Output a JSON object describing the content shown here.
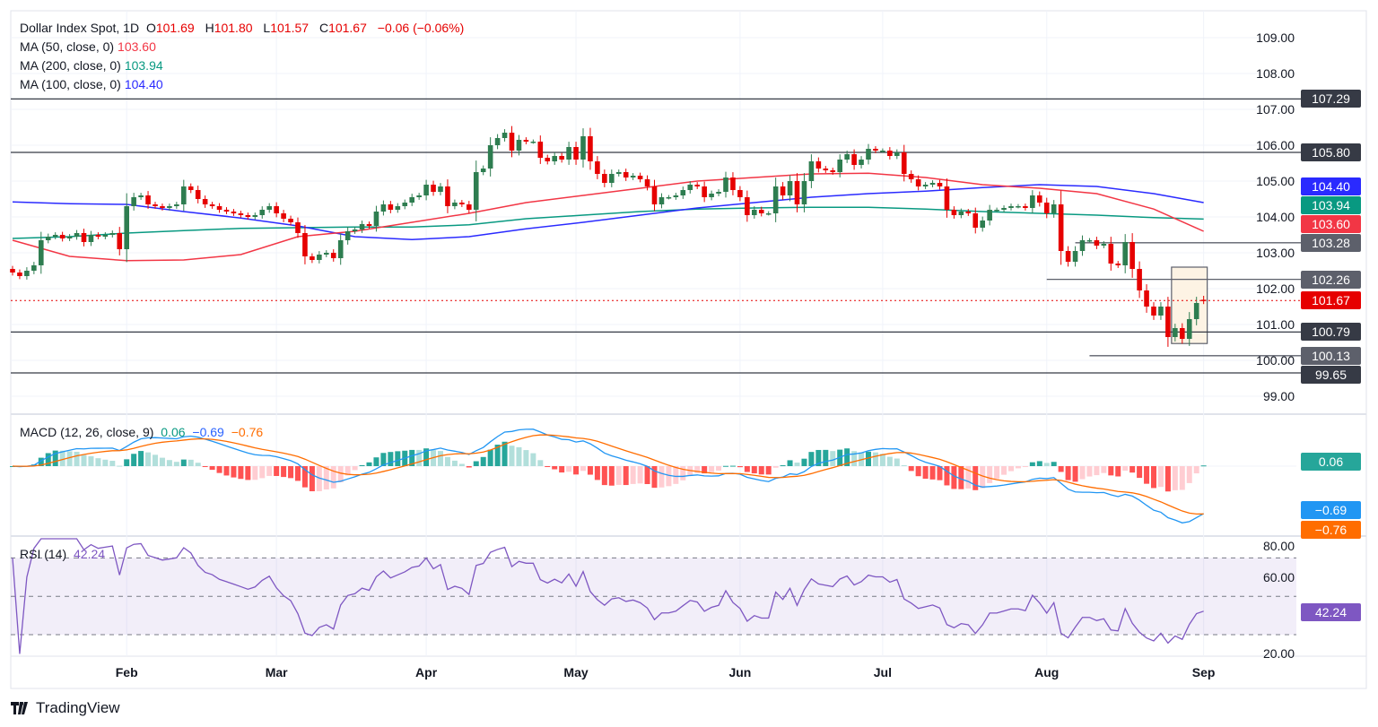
{
  "header": {
    "symbol": "Dollar Index Spot, 1D",
    "o_label": "O",
    "o": "101.69",
    "h_label": "H",
    "h": "101.80",
    "l_label": "L",
    "l": "101.57",
    "c_label": "C",
    "c": "101.67",
    "change": "−0.06 (−0.06%)"
  },
  "legend": {
    "ma50": {
      "label": "MA (50, close, 0)",
      "value": "103.60"
    },
    "ma200": {
      "label": "MA (200, close, 0)",
      "value": "103.94"
    },
    "ma100": {
      "label": "MA (100, close, 0)",
      "value": "104.40"
    }
  },
  "macd": {
    "label": "MACD (12, 26, close, 9)",
    "hist": "0.06",
    "macd": "−0.69",
    "signal": "−0.76"
  },
  "rsi": {
    "label": "RSI (14)",
    "value": "42.24"
  },
  "branding": {
    "name": "TradingView"
  },
  "colors": {
    "up": "#2e7d50",
    "down": "#e60000",
    "ma50": "#f23645",
    "ma100": "#2a2aff",
    "ma200": "#089981",
    "macd": "#2196f3",
    "signal": "#ff6d00",
    "rsi": "#7e57c2"
  },
  "chart_data": {
    "type": "candlestick",
    "price_axis": {
      "ticks": [
        "109.00",
        "108.00",
        "107.00",
        "106.00",
        "105.00",
        "104.00",
        "103.00",
        "102.00",
        "101.00",
        "100.00",
        "99.00"
      ],
      "range": [
        98.5,
        109.5
      ]
    },
    "rsi_axis": {
      "ticks": [
        "80.00",
        "60.00",
        "20.00"
      ],
      "bands": [
        70,
        50,
        30
      ]
    },
    "x_ticks": [
      {
        "label": "Feb",
        "bar": 16
      },
      {
        "label": "Mar",
        "bar": 37
      },
      {
        "label": "Apr",
        "bar": 58
      },
      {
        "label": "May",
        "bar": 79
      },
      {
        "label": "Jun",
        "bar": 102
      },
      {
        "label": "Jul",
        "bar": 122
      },
      {
        "label": "Aug",
        "bar": 145
      },
      {
        "label": "Sep",
        "bar": 167
      }
    ],
    "closes": [
      102.45,
      102.35,
      102.5,
      102.65,
      103.35,
      103.45,
      103.5,
      103.4,
      103.45,
      103.55,
      103.3,
      103.5,
      103.45,
      103.5,
      103.55,
      103.1,
      104.3,
      104.55,
      104.6,
      104.35,
      104.3,
      104.25,
      104.3,
      104.35,
      104.85,
      104.75,
      104.5,
      104.35,
      104.3,
      104.2,
      104.15,
      104.1,
      104.05,
      104.0,
      104.05,
      104.2,
      104.3,
      104.1,
      103.95,
      103.85,
      103.55,
      102.9,
      102.8,
      102.95,
      103.0,
      102.85,
      103.35,
      103.6,
      103.65,
      103.8,
      103.75,
      104.15,
      104.35,
      104.2,
      104.3,
      104.4,
      104.55,
      104.6,
      104.9,
      104.7,
      104.85,
      104.3,
      104.4,
      104.35,
      104.2,
      105.25,
      105.35,
      106.0,
      106.2,
      106.35,
      105.85,
      106.15,
      106.1,
      106.1,
      105.65,
      105.55,
      105.7,
      105.6,
      105.95,
      105.6,
      106.25,
      105.55,
      105.2,
      104.95,
      105.2,
      105.25,
      105.1,
      105.15,
      105.05,
      104.85,
      104.35,
      104.55,
      104.55,
      104.6,
      104.75,
      104.9,
      104.85,
      104.55,
      104.65,
      104.7,
      105.1,
      104.75,
      104.55,
      104.05,
      104.2,
      104.1,
      104.1,
      104.85,
      104.6,
      105.0,
      104.35,
      105.0,
      105.55,
      105.35,
      105.3,
      105.25,
      105.6,
      105.75,
      105.45,
      105.6,
      105.9,
      105.85,
      105.85,
      105.7,
      105.8,
      105.2,
      105.05,
      104.85,
      104.9,
      104.95,
      104.85,
      104.2,
      104.05,
      104.15,
      104.1,
      103.7,
      103.9,
      104.2,
      104.2,
      104.25,
      104.3,
      104.3,
      104.25,
      104.6,
      104.4,
      104.1,
      104.35,
      103.05,
      102.75,
      103.05,
      103.35,
      103.35,
      103.2,
      103.25,
      102.7,
      102.65,
      103.3,
      102.55,
      101.95,
      101.5,
      101.25,
      101.5,
      100.65,
      100.9,
      100.6,
      101.15,
      101.6,
      101.67
    ],
    "last_bar": {
      "o": 101.69,
      "h": 101.8,
      "l": 101.57,
      "c": 101.67
    },
    "ma": {
      "ma50": [
        103.35,
        102.9,
        102.78,
        102.8,
        102.95,
        103.45,
        103.6,
        103.85,
        104.1,
        104.4,
        104.6,
        104.8,
        105.0,
        105.1,
        105.2,
        105.22,
        105.1,
        104.9,
        104.8,
        104.65,
        104.22,
        103.6
      ],
      "ma100": [
        104.42,
        104.37,
        104.35,
        104.15,
        103.97,
        103.75,
        103.45,
        103.37,
        103.45,
        103.67,
        103.85,
        104.05,
        104.25,
        104.4,
        104.55,
        104.65,
        104.72,
        104.82,
        104.9,
        104.85,
        104.65,
        104.4
      ],
      "ma200": [
        103.4,
        103.45,
        103.55,
        103.62,
        103.68,
        103.7,
        103.72,
        103.72,
        103.78,
        103.95,
        104.05,
        104.15,
        104.22,
        104.25,
        104.27,
        104.27,
        104.22,
        104.15,
        104.1,
        104.05,
        103.98,
        103.94
      ]
    },
    "levels": [
      {
        "price": 107.29,
        "label": "107.29",
        "from_bar": 0,
        "color": "#363a45"
      },
      {
        "price": 105.8,
        "label": "105.80",
        "from_bar": 0,
        "color": "#363a45"
      },
      {
        "price": 103.28,
        "label": "103.28",
        "from_bar": 149,
        "color": "#5d606b"
      },
      {
        "price": 102.26,
        "label": "102.26",
        "from_bar": 145,
        "color": "#5d606b"
      },
      {
        "price": 100.79,
        "label": "100.79",
        "from_bar": 0,
        "color": "#363a45"
      },
      {
        "price": 100.13,
        "label": "100.13",
        "from_bar": 151,
        "color": "#5d606b"
      },
      {
        "price": 99.65,
        "label": "99.65",
        "from_bar": 0,
        "color": "#363a45"
      }
    ],
    "ma_labels": [
      {
        "price": 104.4,
        "label": "104.40",
        "color": "#2a2aff"
      },
      {
        "price": 103.94,
        "label": "103.94",
        "color": "#089981"
      },
      {
        "price": 103.6,
        "label": "103.60",
        "color": "#f23645"
      }
    ],
    "last_price": {
      "price": 101.67,
      "label": "101.67",
      "color": "#e60000"
    },
    "highlight_box": {
      "from_bar": 163,
      "to_bar": 167,
      "top": 102.6,
      "bottom": 100.47
    }
  }
}
